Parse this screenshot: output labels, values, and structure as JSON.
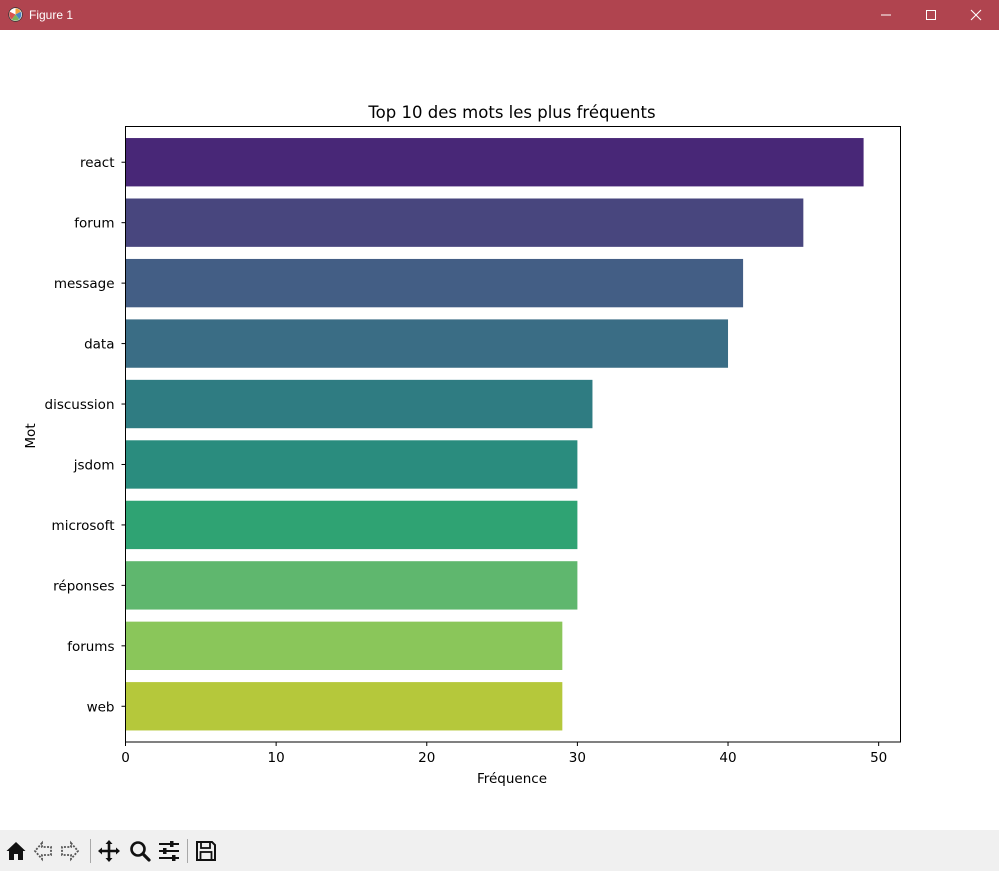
{
  "window": {
    "title": "Figure 1",
    "icon": "matplotlib-logo-icon",
    "controls": [
      "minimize-icon",
      "maximize-icon",
      "close-icon"
    ]
  },
  "colors": {
    "titlebar": "#b0444f",
    "toolbar": "#f0f0f0",
    "bars": [
      "#482777",
      "#48467e",
      "#435e85",
      "#3a6d85",
      "#2f7c82",
      "#2a8c7e",
      "#2fa373",
      "#5fb76e",
      "#8ac65a",
      "#b5c83b"
    ]
  },
  "toolbar": {
    "tools": [
      "home-icon",
      "back-icon",
      "forward-icon",
      "pan-icon",
      "zoom-icon",
      "configure-subplots-icon",
      "save-icon"
    ]
  },
  "chart_data": {
    "type": "bar",
    "orientation": "horizontal",
    "title": "Top 10 des mots les plus fréquents",
    "xlabel": "Fréquence",
    "ylabel": "Mot",
    "categories": [
      "react",
      "forum",
      "message",
      "data",
      "discussion",
      "jsdom",
      "microsoft",
      "réponses",
      "forums",
      "web"
    ],
    "values": [
      49,
      45,
      41,
      40,
      31,
      30,
      30,
      30,
      29,
      29
    ],
    "xlim": [
      0,
      51.45
    ],
    "xticks": [
      0,
      10,
      20,
      30,
      40,
      50
    ],
    "grid": false,
    "legend": "none"
  }
}
